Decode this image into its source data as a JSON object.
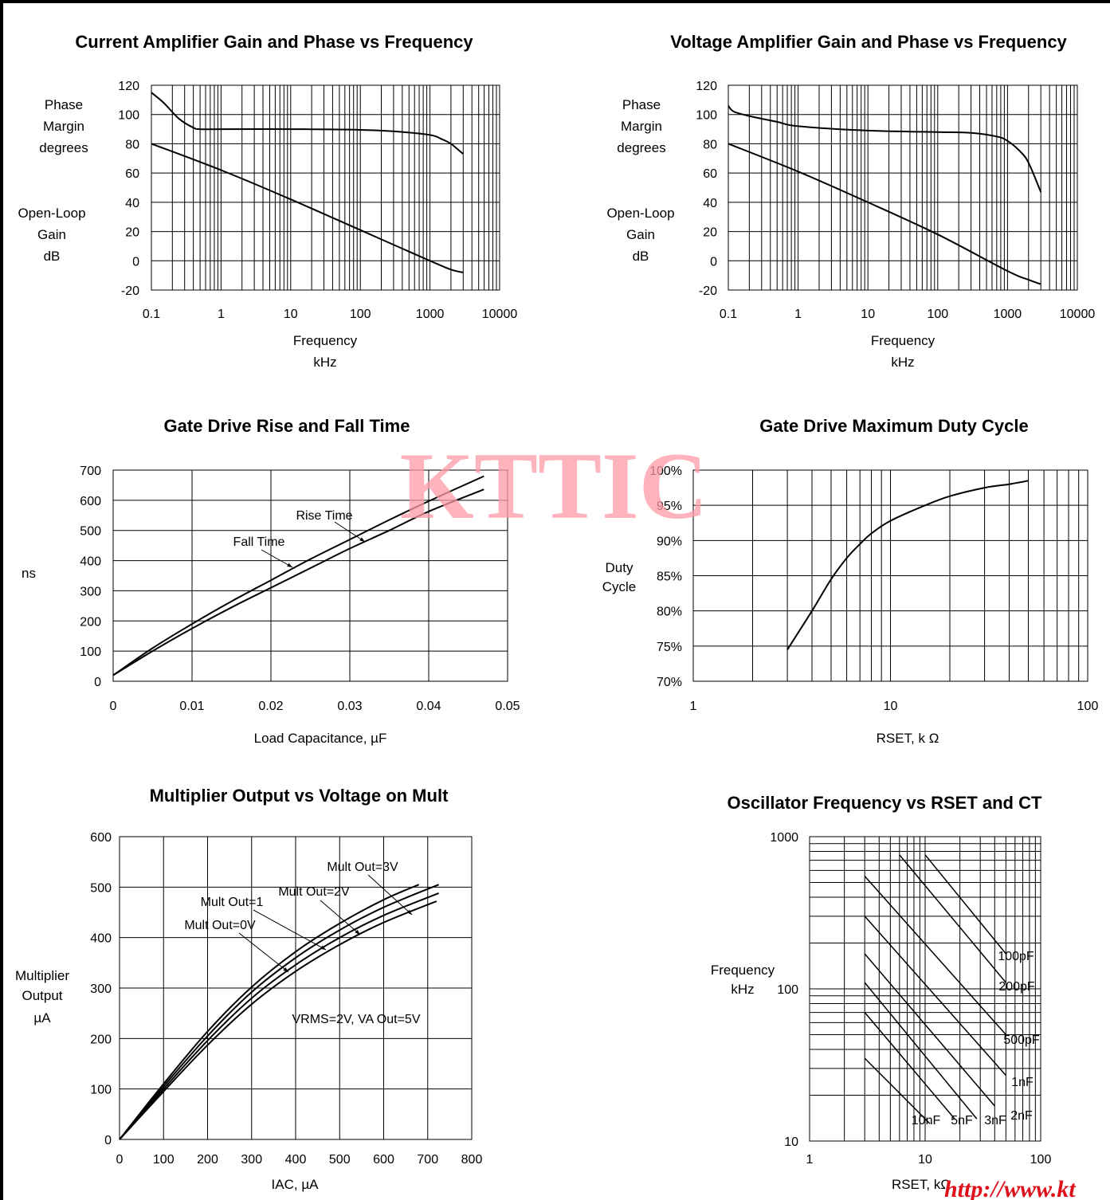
{
  "watermark": "KTTIC",
  "footer_url": "http://www.kt",
  "chart_data": [
    {
      "id": "cagain",
      "type": "line",
      "title": "Current Amplifier Gain and Phase vs Frequency",
      "xlabel": [
        "Frequency",
        "kHz"
      ],
      "ylabel_top": [
        "Phase",
        "Margin",
        "degrees"
      ],
      "ylabel_bottom": [
        "Open-Loop",
        "Gain",
        "dB"
      ],
      "x_scale": "log",
      "xlim": [
        0.1,
        10000
      ],
      "ylim": [
        -20,
        120
      ],
      "x_ticks": [
        "0.1",
        "1",
        "10",
        "100",
        "1000",
        "10000"
      ],
      "y_ticks": [
        "-20",
        "0",
        "20",
        "40",
        "60",
        "80",
        "100",
        "120"
      ],
      "grid": true,
      "series": [
        {
          "role": "phase",
          "x": [
            0.1,
            0.15,
            0.25,
            0.4,
            0.5,
            1,
            10,
            100,
            300,
            1000,
            1500,
            2000,
            3000
          ],
          "y": [
            115,
            108,
            97,
            91,
            90,
            90,
            90,
            89.5,
            88.5,
            86,
            83,
            80,
            73
          ]
        },
        {
          "role": "gain",
          "x": [
            0.1,
            1,
            10,
            100,
            1000,
            2000,
            3000
          ],
          "y": [
            80,
            62,
            42,
            21,
            0,
            -6,
            -8
          ]
        }
      ]
    },
    {
      "id": "vagain",
      "type": "line",
      "title": "Voltage Amplifier Gain and Phase vs Frequency",
      "xlabel": [
        "Frequency",
        "kHz"
      ],
      "ylabel_top": [
        "Phase",
        "Margin",
        "degrees"
      ],
      "ylabel_bottom": [
        "Open-Loop",
        "Gain",
        "dB"
      ],
      "x_scale": "log",
      "xlim": [
        0.1,
        10000
      ],
      "ylim": [
        -20,
        120
      ],
      "x_ticks": [
        "0.1",
        "1",
        "10",
        "100",
        "1000",
        "10000"
      ],
      "y_ticks": [
        "-20",
        "0",
        "20",
        "40",
        "60",
        "80",
        "100",
        "120"
      ],
      "grid": true,
      "series": [
        {
          "role": "phase",
          "x": [
            0.1,
            0.12,
            0.2,
            0.5,
            1,
            10,
            100,
            300,
            700,
            1000,
            1500,
            2000,
            3000
          ],
          "y": [
            106,
            102,
            99,
            95,
            92,
            89,
            88,
            87.5,
            85,
            82,
            75,
            67,
            47
          ]
        },
        {
          "role": "gain",
          "x": [
            0.1,
            1,
            10,
            100,
            1000,
            2000,
            3000
          ],
          "y": [
            80,
            61,
            40,
            18,
            -7,
            -13,
            -16
          ]
        }
      ]
    },
    {
      "id": "gaterise",
      "type": "line",
      "title": "Gate Drive Rise and Fall Time",
      "xlabel": "Load Capacitance, µF",
      "ylabel": "ns",
      "xlim": [
        0,
        0.05
      ],
      "ylim": [
        0,
        700
      ],
      "x_ticks": [
        "0",
        "0.01",
        "0.02",
        "0.03",
        "0.04",
        "0.05"
      ],
      "y_ticks": [
        "0",
        "100",
        "200",
        "300",
        "400",
        "500",
        "600",
        "700"
      ],
      "grid": true,
      "series": [
        {
          "name": "Rise Time",
          "x": [
            0,
            0.005,
            0.01,
            0.015,
            0.02,
            0.025,
            0.03,
            0.035,
            0.04,
            0.047
          ],
          "y": [
            20,
            110,
            190,
            265,
            335,
            405,
            470,
            535,
            597,
            680
          ]
        },
        {
          "name": "Fall Time",
          "x": [
            0,
            0.005,
            0.01,
            0.015,
            0.02,
            0.025,
            0.03,
            0.035,
            0.04,
            0.047
          ],
          "y": [
            20,
            100,
            175,
            245,
            310,
            375,
            440,
            500,
            563,
            636
          ]
        }
      ]
    },
    {
      "id": "dutycycle",
      "type": "line",
      "title": "Gate Drive Maximum Duty Cycle",
      "xlabel": "RSET, k Ω",
      "ylabel": [
        "Duty",
        "Cycle"
      ],
      "x_scale": "log",
      "xlim": [
        1,
        100
      ],
      "ylim": [
        70,
        100
      ],
      "x_ticks": [
        "1",
        "10",
        "100"
      ],
      "y_ticks": [
        "70%",
        "75%",
        "80%",
        "85%",
        "90%",
        "95%",
        "100%"
      ],
      "grid": true,
      "series": [
        {
          "name": "Duty Cycle",
          "x": [
            3,
            4,
            5,
            6,
            7,
            8,
            10,
            15,
            20,
            30,
            40,
            50
          ],
          "y": [
            74.5,
            80,
            84.5,
            87.5,
            89.5,
            91,
            92.8,
            95,
            96.3,
            97.5,
            98,
            98.5
          ]
        }
      ]
    },
    {
      "id": "multout",
      "type": "line",
      "title": "Multiplier Output vs Voltage on Mult",
      "xlabel": "IAC, µA",
      "ylabel": [
        "Multiplier",
        "Output",
        "µA"
      ],
      "xlim": [
        0,
        800
      ],
      "ylim": [
        0,
        600
      ],
      "x_ticks": [
        "0",
        "100",
        "200",
        "300",
        "400",
        "500",
        "600",
        "700",
        "800"
      ],
      "y_ticks": [
        "0",
        "100",
        "200",
        "300",
        "400",
        "500",
        "600"
      ],
      "grid": true,
      "note": "VRMS=2V, VA Out=5V",
      "series": [
        {
          "name": "Mult Out=0V",
          "x": [
            0,
            100,
            200,
            300,
            400,
            500,
            600,
            725
          ],
          "y": [
            0,
            105,
            205,
            292,
            360,
            415,
            460,
            505
          ]
        },
        {
          "name": "Mult Out=1",
          "x": [
            0,
            100,
            200,
            300,
            400,
            500,
            600,
            725
          ],
          "y": [
            0,
            100,
            196,
            280,
            346,
            400,
            444,
            488
          ]
        },
        {
          "name": "Mult Out=2V",
          "x": [
            0,
            100,
            200,
            300,
            400,
            500,
            600,
            720
          ],
          "y": [
            0,
            95,
            187,
            268,
            333,
            386,
            430,
            472
          ]
        },
        {
          "name": "Mult Out=3V",
          "x": [
            0,
            100,
            200,
            300,
            400,
            500,
            600,
            680
          ],
          "y": [
            0,
            110,
            214,
            302,
            372,
            428,
            475,
            505
          ]
        }
      ]
    },
    {
      "id": "oscfreq",
      "type": "line",
      "title": "Oscillator Frequency vs RSET and CT",
      "xlabel": "RSET, kΩ",
      "ylabel": [
        "Frequency",
        "kHz"
      ],
      "x_scale": "log",
      "y_scale": "log",
      "xlim": [
        1,
        100
      ],
      "ylim": [
        10,
        1000
      ],
      "x_ticks": [
        "1",
        "10",
        "100"
      ],
      "y_ticks": [
        "10",
        "100",
        "1000"
      ],
      "grid": true,
      "series": [
        {
          "name": "100pF",
          "x": [
            10,
            50
          ],
          "y": [
            760,
            170
          ]
        },
        {
          "name": "200pF",
          "x": [
            6,
            50
          ],
          "y": [
            760,
            110
          ]
        },
        {
          "name": "500pF",
          "x": [
            3,
            50
          ],
          "y": [
            550,
            50
          ]
        },
        {
          "name": "1nF",
          "x": [
            3,
            50
          ],
          "y": [
            300,
            27
          ]
        },
        {
          "name": "2nF",
          "x": [
            3,
            40
          ],
          "y": [
            170,
            17
          ]
        },
        {
          "name": "3nF",
          "x": [
            3,
            28
          ],
          "y": [
            110,
            14
          ]
        },
        {
          "name": "5nF",
          "x": [
            3,
            18
          ],
          "y": [
            70,
            14
          ]
        },
        {
          "name": "10nF",
          "x": [
            3,
            11
          ],
          "y": [
            35,
            13
          ]
        }
      ]
    }
  ]
}
